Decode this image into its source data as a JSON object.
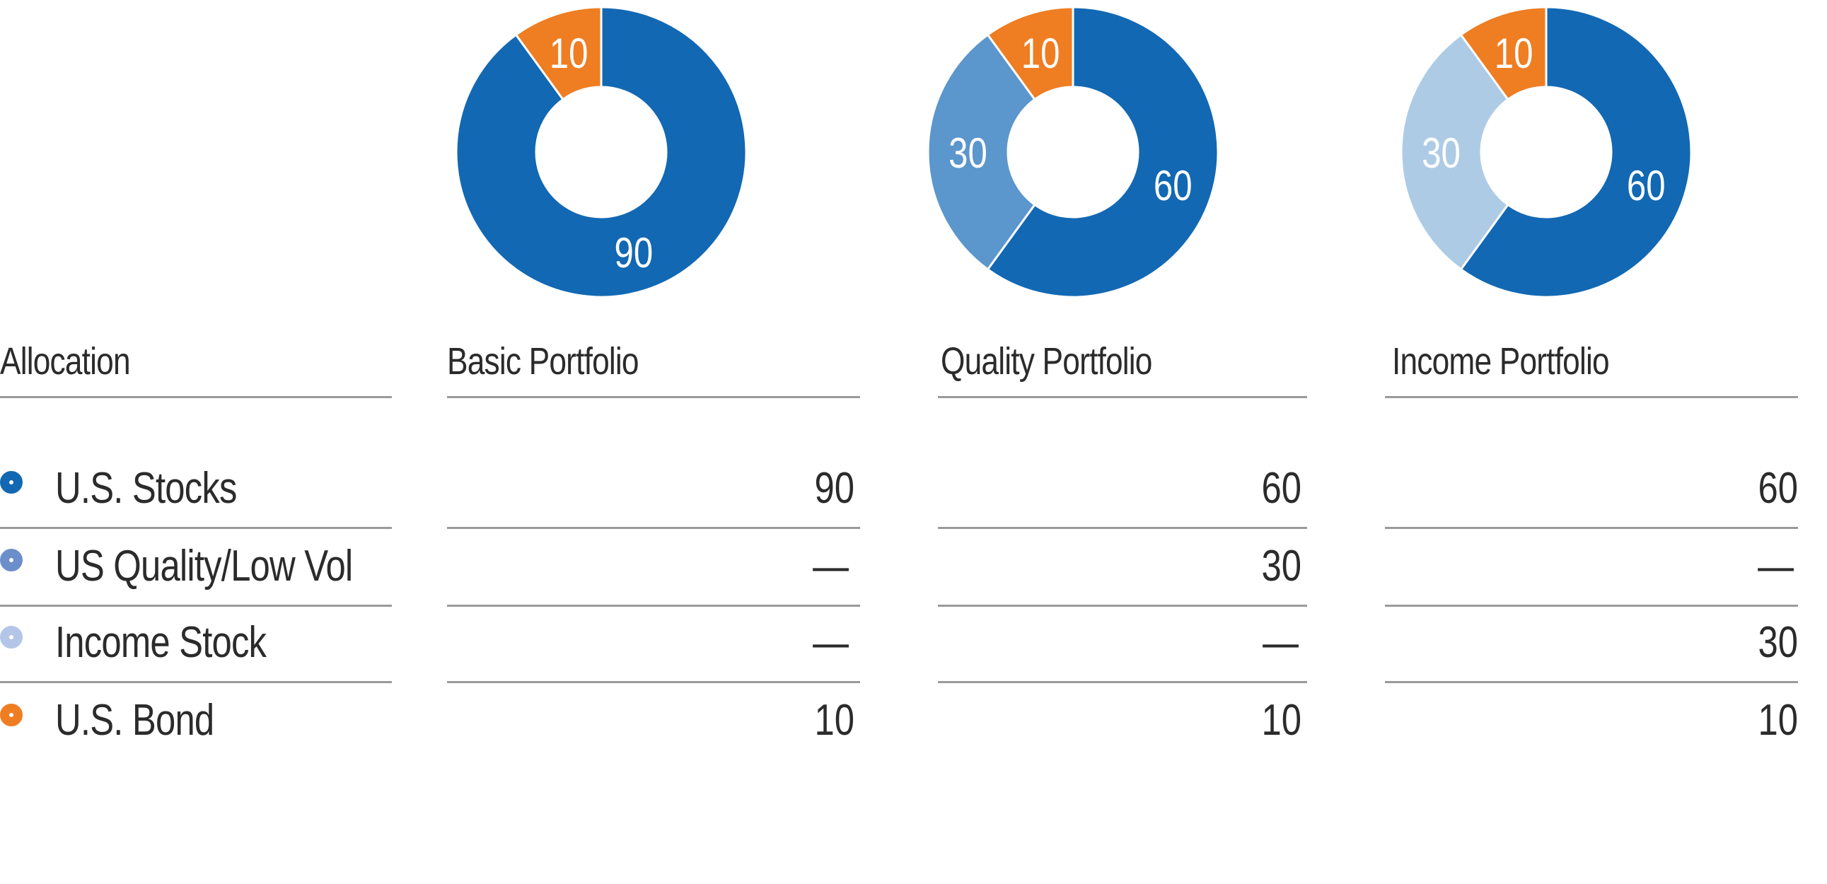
{
  "chart_data": {
    "type": "pie",
    "variant": "donut",
    "categories": [
      "U.S. Stocks",
      "US Quality/Low Vol",
      "Income Stock",
      "U.S. Bond"
    ],
    "colors": {
      "U.S. Stocks": "#1268b3",
      "US Quality/Low Vol": "#5b96cc",
      "Income Stock": "#aecbe6",
      "U.S. Bond": "#ef7d22"
    },
    "legend_colors": [
      "#1268b3",
      "#6c8fcb",
      "#b3c6e8",
      "#ef7d22"
    ],
    "series": [
      {
        "name": "Basic Portfolio",
        "values": [
          90,
          0,
          0,
          10
        ]
      },
      {
        "name": "Quality Portfolio",
        "values": [
          60,
          30,
          0,
          10
        ]
      },
      {
        "name": "Income Portfolio",
        "values": [
          60,
          0,
          30,
          10
        ]
      }
    ]
  },
  "table": {
    "header": "Allocation",
    "columns": [
      "Basic Portfolio",
      "Quality Portfolio",
      "Income Portfolio"
    ],
    "rows": [
      {
        "label": "U.S. Stocks",
        "cells": [
          "90",
          "60",
          "60"
        ]
      },
      {
        "label": "US Quality/Low Vol",
        "cells": [
          "—",
          "30",
          "—"
        ]
      },
      {
        "label": "Income Stock",
        "cells": [
          "—",
          "—",
          "30"
        ]
      },
      {
        "label": "U.S. Bond",
        "cells": [
          "10",
          "10",
          "10"
        ]
      }
    ]
  }
}
